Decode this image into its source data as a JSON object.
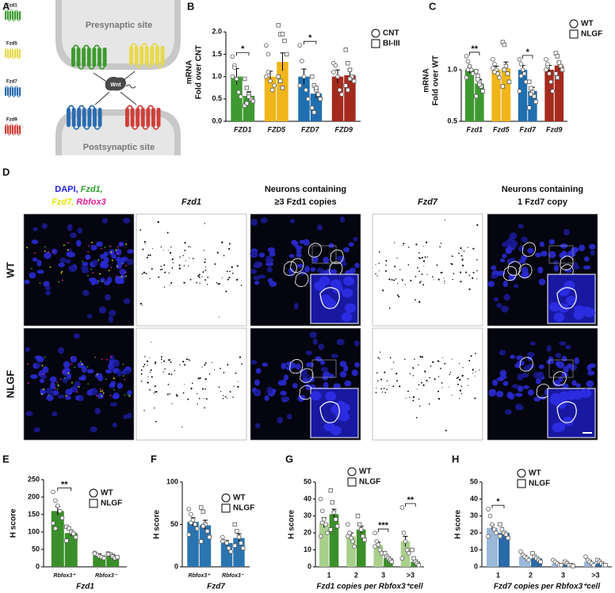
{
  "figure_a": {
    "panel": "A",
    "receptors": [
      "Fzd1",
      "Fzd5",
      "Fzd7",
      "Fzd9"
    ],
    "presynaptic": "Presynaptic site",
    "ligand": "Wnt",
    "postsynaptic": "Postsynaptic site"
  },
  "chart_data": [
    {
      "type": "bar",
      "panel": "B",
      "ylabel": [
        "mRNA",
        "Fold over CNT"
      ],
      "categories": [
        "FZD1",
        "FZD5",
        "FZD7",
        "FZD9"
      ],
      "ylim": [
        0,
        2.2
      ],
      "yticks": [
        {
          "value": 0,
          "label": "0.0"
        },
        {
          "value": 0.5,
          "label": "0.5"
        },
        {
          "value": 1,
          "label": "1.0"
        },
        {
          "value": 1.5,
          "label": "1.5"
        },
        {
          "value": 2,
          "label": "2.0"
        }
      ],
      "series": [
        {
          "name": "CNT",
          "marker": "circle",
          "colors": [
            "#3e9a30",
            "#f0b51a",
            "#1f6fb0",
            "#a52a1e"
          ],
          "values": [
            1.0,
            1.0,
            1.0,
            1.0
          ],
          "errors": [
            0.18,
            0.12,
            0.17,
            0.15
          ],
          "points": [
            [
              1.45,
              1.25,
              0.95,
              0.65,
              0.55,
              1.0,
              1.2
            ],
            [
              1.7,
              1.5,
              0.9,
              0.7,
              0.8,
              1.0,
              1.1
            ],
            [
              1.7,
              1.35,
              1.0,
              0.7,
              0.5,
              0.8
            ],
            [
              1.3,
              1.25,
              1.0,
              0.7,
              0.6,
              1.1
            ]
          ]
        },
        {
          "name": "BI-III",
          "marker": "square",
          "colors": [
            "#3e9a30",
            "#f0b51a",
            "#1f6fb0",
            "#a52a1e"
          ],
          "values": [
            0.57,
            1.33,
            0.62,
            1.03
          ],
          "errors": [
            0.09,
            0.2,
            0.1,
            0.14
          ],
          "points": [
            [
              0.95,
              0.75,
              0.6,
              0.5,
              0.45,
              0.35,
              0.4,
              0.55
            ],
            [
              2.15,
              1.95,
              1.95,
              1.8,
              1.5,
              1.0,
              0.9,
              0.75
            ],
            [
              1.0,
              0.8,
              0.7,
              0.6,
              0.5,
              0.3,
              0.2,
              0.75
            ],
            [
              1.6,
              1.3,
              1.15,
              1.0,
              0.9,
              0.8,
              0.7,
              0.95
            ]
          ]
        }
      ],
      "annotations": [
        {
          "category": 0,
          "label": "*"
        },
        {
          "category": 2,
          "label": "*"
        }
      ]
    },
    {
      "type": "bar",
      "panel": "C",
      "ylabel": [
        "mRNA",
        "Fold over WT"
      ],
      "categories": [
        "Fzd1",
        "Fzd5",
        "Fzd7",
        "Fzd9"
      ],
      "log": true,
      "ylim": [
        0.5,
        1.5
      ],
      "yticks": [
        {
          "value": 0.5,
          "label": "0.5"
        },
        {
          "value": 1,
          "label": "1.0"
        }
      ],
      "series": [
        {
          "name": "WT",
          "marker": "circle",
          "colors": [
            "#3e9a30",
            "#f0b51a",
            "#1f6fb0",
            "#a52a1e"
          ],
          "values": [
            1.0,
            1.0,
            1.0,
            1.0
          ],
          "errors": [
            0.05,
            0.05,
            0.06,
            0.06
          ],
          "points": [
            [
              1.2,
              1.12,
              1.05,
              1.0,
              0.95,
              0.9,
              1.0,
              1.05
            ],
            [
              1.15,
              1.08,
              1.0,
              0.95,
              0.9,
              1.02,
              0.97
            ],
            [
              1.15,
              1.08,
              1.0,
              0.95,
              0.85,
              0.75,
              0.92
            ],
            [
              1.15,
              1.05,
              0.95,
              0.85,
              0.75,
              1.0,
              1.08
            ]
          ]
        },
        {
          "name": "NLGF",
          "marker": "square",
          "colors": [
            "#3e9a30",
            "#f0b51a",
            "#1f6fb0",
            "#a52a1e"
          ],
          "values": [
            0.83,
            1.02,
            0.75,
            1.06
          ],
          "errors": [
            0.05,
            0.09,
            0.04,
            0.05
          ],
          "points": [
            [
              0.98,
              0.92,
              0.85,
              0.8,
              0.75,
              0.7,
              0.88,
              0.82
            ],
            [
              1.45,
              1.4,
              1.05,
              0.95,
              0.85,
              0.8,
              1.0
            ],
            [
              0.85,
              0.78,
              0.74,
              0.7,
              0.65,
              0.6,
              0.72
            ],
            [
              1.25,
              1.2,
              1.1,
              1.05,
              1.0,
              0.95,
              0.9
            ]
          ]
        }
      ],
      "annotations": [
        {
          "category": 0,
          "label": "**"
        },
        {
          "category": 2,
          "label": "*"
        }
      ]
    },
    {
      "type": "bar",
      "panel": "E",
      "ylabel": [
        "H score"
      ],
      "xlabel": "Fzd1",
      "categories": [
        "Rbfox3⁺",
        "Rbfox3⁻"
      ],
      "ylim": [
        0,
        250
      ],
      "yticks": [
        0,
        50,
        100,
        150,
        200,
        250
      ],
      "series": [
        {
          "name": "WT",
          "marker": "circle",
          "colors": [
            "#3b8f2a",
            "#3b8f2a"
          ],
          "values": [
            160,
            33
          ],
          "errors": [
            12,
            4
          ],
          "points": [
            [
              215,
              190,
              175,
              160,
              140,
              125,
              110
            ],
            [
              40,
              35,
              30,
              28,
              25,
              38
            ]
          ]
        },
        {
          "name": "NLGF",
          "marker": "square",
          "colors": [
            "#3b8f2a",
            "#3b8f2a"
          ],
          "values": [
            97,
            32
          ],
          "errors": [
            8,
            4
          ],
          "points": [
            [
              115,
              110,
              100,
              95,
              85,
              75
            ],
            [
              38,
              35,
              30,
              25,
              28,
              36
            ]
          ]
        }
      ],
      "annotations": [
        {
          "category": 0,
          "label": "**"
        }
      ]
    },
    {
      "type": "bar",
      "panel": "F",
      "ylabel": [
        "H score"
      ],
      "xlabel": "Fzd7",
      "categories": [
        "Rbfox3⁺",
        "Rbfox3⁻"
      ],
      "ylim": [
        0,
        100
      ],
      "yticks": [
        0,
        50,
        100
      ],
      "series": [
        {
          "name": "WT",
          "marker": "circle",
          "colors": [
            "#2a74b0",
            "#2a74b0"
          ],
          "values": [
            53,
            28
          ],
          "errors": [
            5,
            3
          ],
          "points": [
            [
              68,
              62,
              55,
              50,
              45,
              38,
              52
            ],
            [
              35,
              30,
              28,
              22,
              18,
              30
            ]
          ]
        },
        {
          "name": "NLGF",
          "marker": "square",
          "colors": [
            "#2a74b0",
            "#2a74b0"
          ],
          "values": [
            49,
            34
          ],
          "errors": [
            6,
            5
          ],
          "points": [
            [
              70,
              65,
              50,
              42,
              35,
              30,
              48
            ],
            [
              50,
              42,
              35,
              28,
              22,
              25
            ]
          ]
        }
      ],
      "annotations": []
    },
    {
      "type": "bar",
      "panel": "G",
      "ylabel": [
        "H score"
      ],
      "xlabel": "Fzd1 copies per Rbfox3⁺cell",
      "categories": [
        "1",
        "2",
        "3",
        ">3"
      ],
      "ylim": [
        0,
        50
      ],
      "yticks": [
        0,
        10,
        20,
        30,
        40,
        50
      ],
      "series": [
        {
          "name": "WT",
          "marker": "circle",
          "colors": [
            "#a9cf8c",
            "#a9cf8c",
            "#a9cf8c",
            "#a9cf8c"
          ],
          "values": [
            26,
            18,
            13,
            15
          ],
          "errors": [
            3,
            2,
            1.5,
            3
          ],
          "points": [
            [
              40,
              33,
              28,
              25,
              20,
              18,
              26
            ],
            [
              25,
              20,
              17,
              15,
              12,
              18
            ],
            [
              20,
              15,
              13,
              10,
              8,
              12
            ],
            [
              35,
              20,
              15,
              10,
              8,
              5
            ]
          ]
        },
        {
          "name": "NLGF",
          "marker": "square",
          "colors": [
            "#3b8f2a",
            "#3b8f2a",
            "#3b8f2a",
            "#3b8f2a"
          ],
          "values": [
            31,
            22,
            5,
            3
          ],
          "errors": [
            3,
            2,
            0.8,
            1
          ],
          "points": [
            [
              45,
              38,
              32,
              28,
              24,
              22
            ],
            [
              30,
              25,
              22,
              18,
              16
            ],
            [
              8,
              6,
              5,
              4,
              3
            ],
            [
              10,
              5,
              3,
              2,
              1
            ]
          ]
        }
      ],
      "annotations": [
        {
          "category": 2,
          "label": "***"
        },
        {
          "category": 3,
          "label": "**"
        }
      ]
    },
    {
      "type": "bar",
      "panel": "H",
      "ylabel": [
        "H score"
      ],
      "xlabel": "Fzd7 copies per Rbfox3⁺cell",
      "categories": [
        "1",
        "2",
        "3",
        ">3"
      ],
      "ylim": [
        0,
        50
      ],
      "yticks": [
        0,
        10,
        20,
        30,
        40,
        50
      ],
      "series": [
        {
          "name": "WT",
          "marker": "circle",
          "colors": [
            "#9ab8d8",
            "#9ab8d8",
            "#9ab8d8",
            "#9ab8d8"
          ],
          "values": [
            23,
            6,
            2,
            3
          ],
          "errors": [
            1.5,
            0.8,
            0.5,
            0.8
          ],
          "points": [
            [
              34,
              30,
              25,
              22,
              20,
              18
            ],
            [
              9,
              7,
              6,
              5,
              4
            ],
            [
              4,
              3,
              2,
              1,
              1
            ],
            [
              6,
              4,
              3,
              2,
              1
            ]
          ]
        },
        {
          "name": "NLGF",
          "marker": "square",
          "colors": [
            "#2a6aa8",
            "#2a6aa8",
            "#2a6aa8",
            "#2a6aa8"
          ],
          "values": [
            20,
            5,
            1.5,
            2
          ],
          "errors": [
            1,
            0.8,
            0.3,
            0.5
          ],
          "points": [
            [
              25,
              22,
              20,
              19,
              17,
              18
            ],
            [
              8,
              6,
              5,
              4,
              3
            ],
            [
              3,
              2,
              1,
              1,
              0.5
            ],
            [
              4,
              3,
              2,
              1,
              1
            ]
          ]
        }
      ],
      "annotations": [
        {
          "category": 0,
          "label": "*"
        }
      ]
    }
  ],
  "figure_d": {
    "panel": "D",
    "merge_label": [
      {
        "text": "DAPI,",
        "color": "#2020f0"
      },
      {
        "text": "Fzd1,",
        "color": "#2fa02f"
      },
      {
        "text": "Fzd7,",
        "color": "#e6e600"
      },
      {
        "text": "Rbfox3",
        "color": "#e0209a"
      }
    ],
    "columns": [
      [
        "Fzd1"
      ],
      [
        "Neurons containing",
        "≥3 Fzd1 copies"
      ],
      [
        "Fzd7"
      ],
      [
        "Neurons containing",
        "1 Fzd7 copy"
      ]
    ],
    "rows": [
      "WT",
      "NLGF"
    ]
  }
}
